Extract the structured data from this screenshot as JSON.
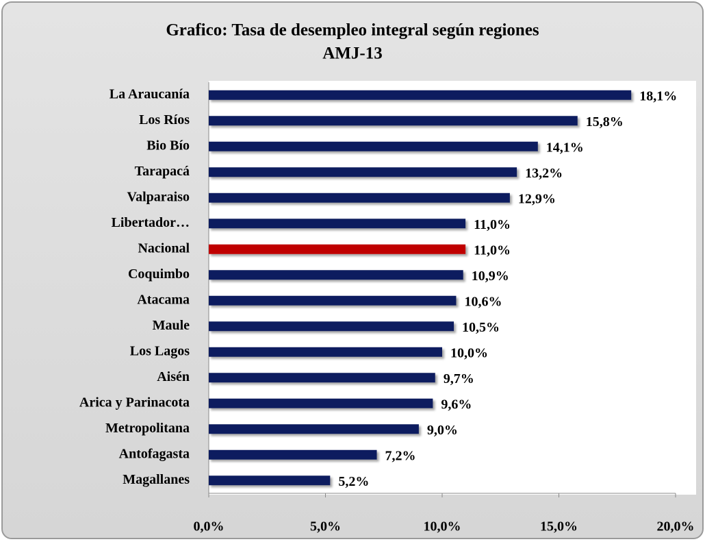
{
  "chart_data": {
    "type": "hbar",
    "title": "Grafico: Tasa de desempleo integral según regiones",
    "subtitle": "AMJ-13",
    "categories": [
      "La Araucanía",
      "Los Ríos",
      "Bio Bío",
      "Tarapacá",
      "Valparaiso",
      "Libertador…",
      "Nacional",
      "Coquimbo",
      "Atacama",
      "Maule",
      "Los Lagos",
      "Aisén",
      "Arica y Parinacota",
      "Metropolitana",
      "Antofagasta",
      "Magallanes"
    ],
    "values": [
      18.1,
      15.8,
      14.1,
      13.2,
      12.9,
      11.0,
      11.0,
      10.9,
      10.6,
      10.5,
      10.0,
      9.7,
      9.6,
      9.0,
      7.2,
      5.2
    ],
    "value_labels": [
      "18,1%",
      "15,8%",
      "14,1%",
      "13,2%",
      "12,9%",
      "11,0%",
      "11,0%",
      "10,9%",
      "10,6%",
      "10,5%",
      "10,0%",
      "9,7%",
      "9,6%",
      "9,0%",
      "7,2%",
      "5,2%"
    ],
    "colors": [
      "#0f1f5f",
      "#0f1f5f",
      "#0f1f5f",
      "#0f1f5f",
      "#0f1f5f",
      "#0f1f5f",
      "#c00000",
      "#0f1f5f",
      "#0f1f5f",
      "#0f1f5f",
      "#0f1f5f",
      "#0f1f5f",
      "#0f1f5f",
      "#0f1f5f",
      "#0f1f5f",
      "#0f1f5f"
    ],
    "xlim": [
      0,
      20
    ],
    "xticks": [
      {
        "value": 0,
        "label": "0,0%"
      },
      {
        "value": 5,
        "label": "5,0%"
      },
      {
        "value": 10,
        "label": "10,0%"
      },
      {
        "value": 15,
        "label": "15,0%"
      },
      {
        "value": 20,
        "label": "20,0%"
      }
    ],
    "grid": false
  }
}
